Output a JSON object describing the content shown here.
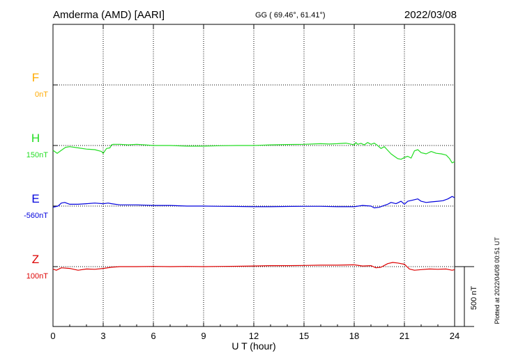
{
  "chart_data": {
    "type": "line",
    "title": "Amderma (AMD)  [AARI]",
    "subtitle": "GG ( 69.46°,  61.41°)",
    "date": "2022/03/08",
    "xlabel": "U T (hour)",
    "xlim": [
      0,
      24
    ],
    "x_ticks": [
      "0",
      "3",
      "6",
      "9",
      "12",
      "15",
      "18",
      "21",
      "24"
    ],
    "grid": true,
    "scale_bar": {
      "label": "500 nT",
      "value": 500
    },
    "plotted_note": "Plotted at 2022/04/08 00:51 UT",
    "colors": {
      "F": "#ffaa00",
      "H": "#22dd22",
      "E": "#0000dd",
      "Z": "#dd0000"
    },
    "series": [
      {
        "name": "F",
        "baseline_label": "0nT",
        "baseline_value": 0,
        "x": [],
        "values": []
      },
      {
        "name": "H",
        "baseline_label": "150nT",
        "baseline_value": 150,
        "x": [
          0,
          0.25,
          0.5,
          0.75,
          1,
          1.5,
          2,
          2.5,
          2.9,
          3.0,
          3.2,
          3.4,
          3.5,
          3.6,
          4,
          4.5,
          5,
          5.5,
          6,
          7,
          8,
          9,
          10,
          11,
          12,
          13,
          14,
          15,
          16,
          16.5,
          17,
          17.5,
          18,
          18.1,
          18.2,
          18.4,
          18.6,
          18.8,
          19,
          19.2,
          19.4,
          19.6,
          19.8,
          20,
          20.2,
          20.4,
          20.6,
          20.8,
          21,
          21.2,
          21.4,
          21.6,
          21.8,
          22,
          22.3,
          22.6,
          22.9,
          23.2,
          23.5,
          23.7,
          23.85,
          24
        ],
        "values": [
          110,
          85,
          110,
          135,
          140,
          130,
          120,
          115,
          100,
          85,
          125,
          130,
          155,
          160,
          160,
          155,
          160,
          155,
          150,
          150,
          145,
          145,
          148,
          150,
          150,
          155,
          158,
          160,
          165,
          162,
          165,
          170,
          155,
          175,
          160,
          168,
          155,
          175,
          160,
          170,
          150,
          125,
          140,
          110,
          80,
          60,
          40,
          35,
          50,
          60,
          45,
          105,
          115,
          90,
          80,
          100,
          85,
          80,
          70,
          40,
          5,
          15
        ]
      },
      {
        "name": "E",
        "baseline_label": "-560nT",
        "baseline_value": -560,
        "x": [
          0,
          0.3,
          0.5,
          0.7,
          1,
          1.5,
          2,
          2.5,
          3,
          3.3,
          3.5,
          4,
          5,
          6,
          7,
          8,
          9,
          10,
          11,
          12,
          13,
          14,
          15,
          16,
          17,
          18,
          18.5,
          19,
          19.2,
          19.5,
          19.8,
          20,
          20.2,
          20.5,
          20.8,
          21,
          21.2,
          21.5,
          21.8,
          22,
          22.3,
          22.6,
          23,
          23.3,
          23.6,
          23.85,
          24
        ],
        "values": [
          -570,
          -560,
          -535,
          -530,
          -545,
          -545,
          -540,
          -535,
          -540,
          -535,
          -540,
          -550,
          -550,
          -555,
          -555,
          -560,
          -560,
          -562,
          -563,
          -565,
          -565,
          -563,
          -562,
          -562,
          -565,
          -565,
          -555,
          -560,
          -575,
          -570,
          -555,
          -545,
          -530,
          -540,
          -520,
          -545,
          -520,
          -510,
          -500,
          -520,
          -530,
          -525,
          -520,
          -515,
          -500,
          -480,
          -490
        ]
      },
      {
        "name": "Z",
        "baseline_label": "100nT",
        "baseline_value": 100,
        "x": [
          0,
          0.2,
          0.5,
          1,
          1.5,
          2,
          2.5,
          3,
          3.5,
          4,
          5,
          6,
          7,
          8,
          9,
          10,
          11,
          12,
          13,
          14,
          15,
          16,
          17,
          18,
          18.5,
          19,
          19.3,
          19.6,
          20,
          20.3,
          20.6,
          21,
          21.3,
          21.6,
          22,
          22.5,
          23,
          23.5,
          23.85,
          24
        ],
        "values": [
          80,
          70,
          90,
          85,
          70,
          80,
          78,
          85,
          95,
          100,
          100,
          102,
          100,
          102,
          100,
          102,
          103,
          105,
          108,
          108,
          110,
          112,
          112,
          115,
          105,
          108,
          90,
          95,
          125,
          135,
          130,
          120,
          80,
          70,
          75,
          80,
          78,
          80,
          70,
          75
        ]
      }
    ]
  }
}
